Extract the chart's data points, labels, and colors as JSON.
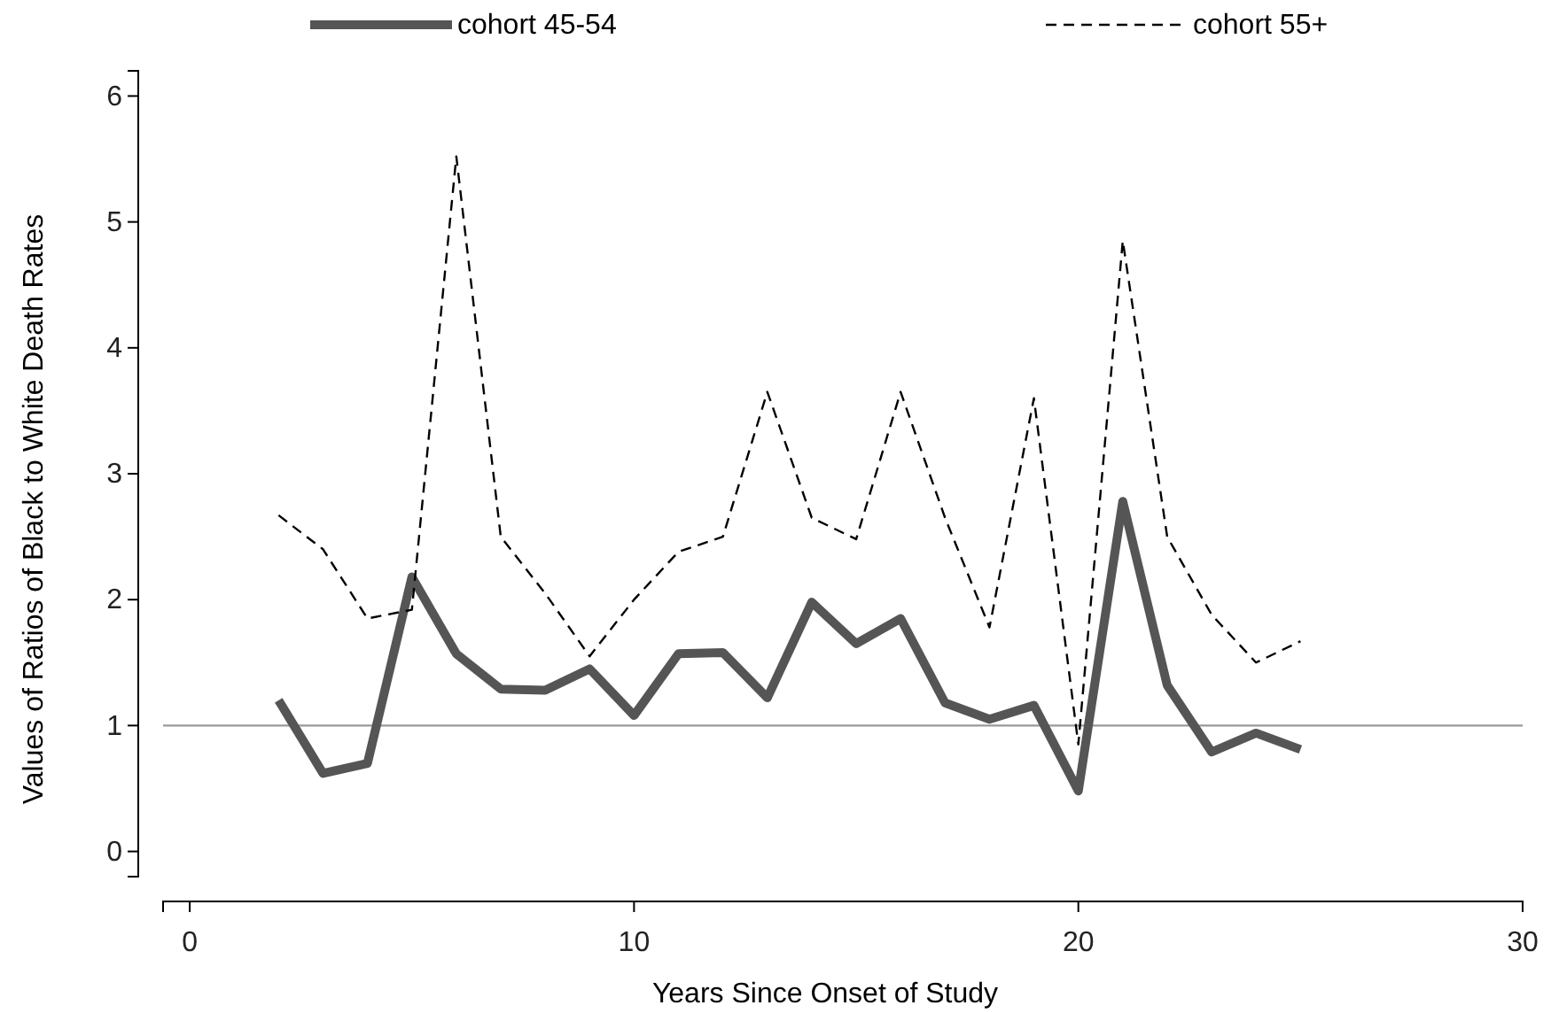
{
  "chart_data": {
    "type": "line",
    "xlabel": "Years Since Onset of Study",
    "ylabel": "Values of Ratios of Black to White Death Rates",
    "x": [
      2,
      3,
      4,
      5,
      6,
      7,
      8,
      9,
      10,
      11,
      12,
      13,
      14,
      15,
      16,
      17,
      18,
      19,
      20,
      21,
      22,
      23,
      24,
      25
    ],
    "series": [
      {
        "name": "cohort 45-54",
        "color": "#555555",
        "line_style": "solid",
        "values": [
          1.2,
          0.62,
          0.7,
          2.18,
          1.57,
          1.29,
          1.28,
          1.45,
          1.08,
          1.57,
          1.58,
          1.22,
          1.98,
          1.65,
          1.85,
          1.18,
          1.05,
          1.16,
          0.48,
          2.78,
          1.32,
          0.79,
          0.94,
          0.81
        ]
      },
      {
        "name": "cohort 55+",
        "color": "#000000",
        "line_style": "dashed",
        "values": [
          2.67,
          2.4,
          1.85,
          1.92,
          5.52,
          2.5,
          2.05,
          1.55,
          2.0,
          2.38,
          2.5,
          3.65,
          2.65,
          2.48,
          3.65,
          2.65,
          1.78,
          3.6,
          0.85,
          4.85,
          2.5,
          1.88,
          1.5,
          1.67
        ]
      }
    ],
    "xlim": [
      -0.6,
      30
    ],
    "xticks": [
      0,
      10,
      20,
      30
    ],
    "ylim": [
      -0.2,
      6.2
    ],
    "yticks": [
      0,
      1,
      2,
      3,
      4,
      5,
      6
    ],
    "ref_lines": [
      {
        "axis": "y",
        "value": 1,
        "color": "#999999"
      }
    ],
    "grid": false,
    "legend": "top",
    "marker": "none"
  }
}
